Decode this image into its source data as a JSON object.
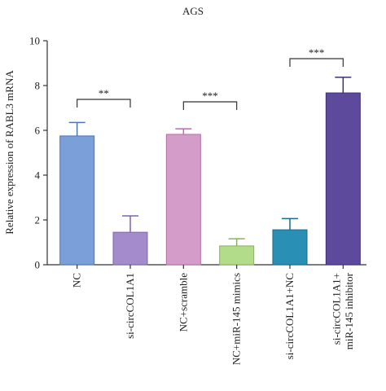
{
  "chart_data": {
    "type": "bar",
    "title": "AGS",
    "y_label": "Relative expression of RABL3 mRNA",
    "categories": [
      "NC",
      "si-circCOL1A1",
      "NC+scramble",
      "NC+miR-145 mimics",
      "si-circCOL1A1+NC",
      "si-circCOL1A1+\nmiR-145 inhibitor"
    ],
    "values": [
      5.75,
      1.45,
      5.82,
      0.84,
      1.56,
      7.67
    ],
    "errors": [
      0.6,
      0.73,
      0.25,
      0.32,
      0.5,
      0.7
    ],
    "colors": [
      "#7b9fd8",
      "#a48ccc",
      "#d49cc8",
      "#b3dc8a",
      "#2a8fb4",
      "#5e4a9c"
    ],
    "edge_colors": [
      "#4f74b8",
      "#7d64ae",
      "#b470a8",
      "#86b45a",
      "#1a6a8a",
      "#3e2e78"
    ],
    "ylim": [
      0,
      10
    ],
    "yticks": [
      0,
      2,
      4,
      6,
      8,
      10
    ],
    "annotations": [
      "**",
      "***",
      "***"
    ]
  }
}
